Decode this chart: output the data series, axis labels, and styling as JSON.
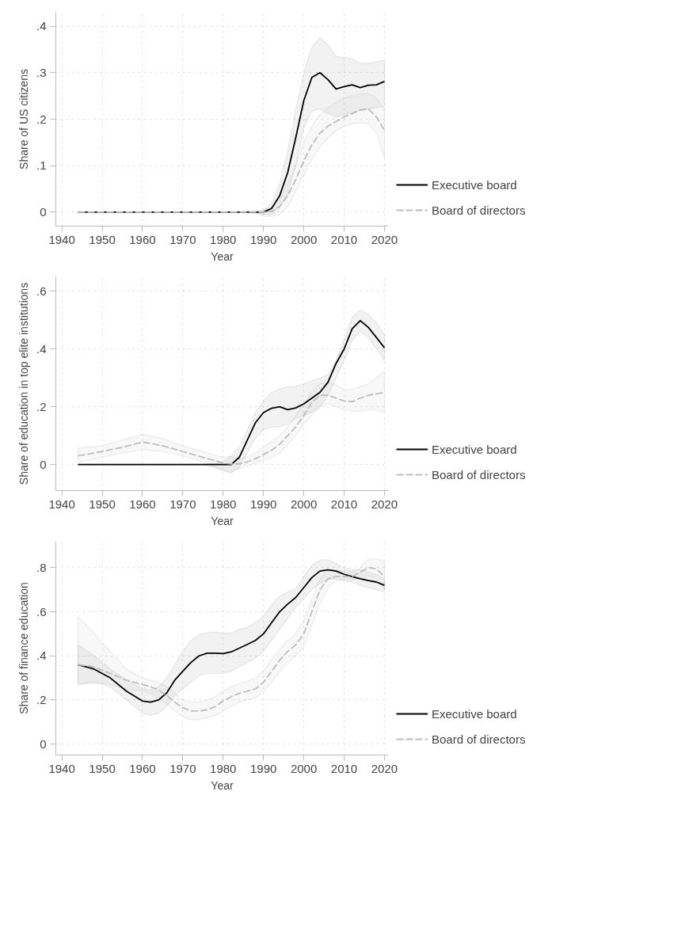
{
  "chart_data": [
    {
      "type": "line",
      "ylabel": "Share of US citizens",
      "xlabel": "Year",
      "xlim": [
        1938.5,
        2021
      ],
      "ylim": [
        -0.03,
        0.43
      ],
      "xticks": [
        1940,
        1950,
        1960,
        1970,
        1980,
        1990,
        2000,
        2010,
        2020
      ],
      "yticks": [
        {
          "value": 0,
          "label": "0"
        },
        {
          "value": 0.1,
          "label": ".1"
        },
        {
          "value": 0.2,
          "label": ".2"
        },
        {
          "value": 0.3,
          "label": ".3"
        },
        {
          "value": 0.4,
          "label": ".4"
        }
      ],
      "grid": true,
      "legend": "right",
      "line_style": "solid",
      "x": [
        1944,
        1950,
        1960,
        1970,
        1980,
        1988,
        1990,
        1992,
        1994,
        1996,
        1998,
        2000,
        2002,
        2004,
        2006,
        2008,
        2010,
        2012,
        2014,
        2016,
        2018,
        2020
      ],
      "series": [
        {
          "name": "Executive board",
          "color": "#000000",
          "values": [
            0,
            0,
            0,
            0,
            0,
            0,
            0,
            0.008,
            0.035,
            0.085,
            0.16,
            0.24,
            0.29,
            0.3,
            0.285,
            0.265,
            0.27,
            0.274,
            0.268,
            0.273,
            0.274,
            0.281
          ],
          "upper": [
            0,
            0,
            0,
            0,
            0,
            0.002,
            0.005,
            0.02,
            0.06,
            0.13,
            0.22,
            0.3,
            0.355,
            0.375,
            0.36,
            0.335,
            0.333,
            0.33,
            0.32,
            0.32,
            0.323,
            0.327
          ],
          "lower": [
            0,
            0,
            0,
            0,
            0,
            -0.002,
            -0.005,
            -0.005,
            0.01,
            0.04,
            0.1,
            0.18,
            0.218,
            0.222,
            0.212,
            0.205,
            0.21,
            0.215,
            0.218,
            0.222,
            0.225,
            0.228
          ]
        },
        {
          "name": "Board of directors",
          "color": "#bdbdbd",
          "line_style": "dashed",
          "values": [
            0,
            0,
            0,
            0,
            0,
            0,
            0,
            0.002,
            0.012,
            0.035,
            0.07,
            0.11,
            0.145,
            0.17,
            0.185,
            0.195,
            0.205,
            0.212,
            0.22,
            0.222,
            0.205,
            0.176
          ],
          "upper": [
            0,
            0,
            0,
            0,
            0,
            0.002,
            0.005,
            0.01,
            0.03,
            0.06,
            0.1,
            0.15,
            0.185,
            0.21,
            0.225,
            0.235,
            0.245,
            0.25,
            0.255,
            0.255,
            0.245,
            0.223
          ],
          "lower": [
            0,
            0,
            0,
            0,
            0,
            -0.002,
            -0.008,
            -0.01,
            -0.005,
            0.012,
            0.045,
            0.08,
            0.115,
            0.14,
            0.16,
            0.175,
            0.185,
            0.19,
            0.192,
            0.19,
            0.17,
            0.116
          ]
        }
      ]
    },
    {
      "type": "line",
      "ylabel": "Share of education in top elite institutions",
      "xlabel": "Year",
      "xlim": [
        1938.5,
        2021
      ],
      "ylim": [
        -0.09,
        0.65
      ],
      "xticks": [
        1940,
        1950,
        1960,
        1970,
        1980,
        1990,
        2000,
        2010,
        2020
      ],
      "yticks": [
        {
          "value": 0,
          "label": "0"
        },
        {
          "value": 0.2,
          "label": ".2"
        },
        {
          "value": 0.4,
          "label": ".4"
        },
        {
          "value": 0.6,
          "label": ".6"
        }
      ],
      "grid": true,
      "legend": "right",
      "line_style": "solid",
      "x": [
        1944,
        1950,
        1955,
        1960,
        1965,
        1970,
        1975,
        1980,
        1982,
        1984,
        1986,
        1988,
        1990,
        1992,
        1994,
        1996,
        1998,
        2000,
        2002,
        2004,
        2006,
        2008,
        2010,
        2012,
        2014,
        2016,
        2018,
        2020
      ],
      "series": [
        {
          "name": "Executive board",
          "color": "#000000",
          "values": [
            0,
            0,
            0,
            0,
            0,
            0,
            0,
            0,
            0,
            0.025,
            0.085,
            0.145,
            0.18,
            0.195,
            0.2,
            0.19,
            0.196,
            0.21,
            0.23,
            0.25,
            0.285,
            0.35,
            0.4,
            0.47,
            0.498,
            0.475,
            0.44,
            0.404
          ],
          "upper": [
            0,
            0,
            0,
            0,
            0,
            0,
            0,
            0.01,
            0.03,
            0.06,
            0.12,
            0.18,
            0.22,
            0.25,
            0.262,
            0.27,
            0.27,
            0.28,
            0.29,
            0.3,
            0.31,
            0.36,
            0.43,
            0.51,
            0.535,
            0.52,
            0.49,
            0.45
          ],
          "lower": [
            0,
            0,
            0,
            0,
            0,
            0,
            0,
            -0.02,
            -0.03,
            -0.01,
            0.04,
            0.09,
            0.12,
            0.13,
            0.13,
            0.14,
            0.16,
            0.17,
            0.18,
            0.2,
            0.24,
            0.3,
            0.36,
            0.43,
            0.46,
            0.44,
            0.4,
            0.36
          ]
        },
        {
          "name": "Board of directors",
          "color": "#bdbdbd",
          "line_style": "dashed",
          "values": [
            0.03,
            0.045,
            0.06,
            0.078,
            0.065,
            0.045,
            0.025,
            0.005,
            0.002,
            0.002,
            0.01,
            0.02,
            0.035,
            0.05,
            0.07,
            0.1,
            0.13,
            0.17,
            0.215,
            0.24,
            0.24,
            0.23,
            0.22,
            0.218,
            0.23,
            0.24,
            0.245,
            0.25
          ],
          "upper": [
            0.057,
            0.065,
            0.085,
            0.105,
            0.09,
            0.065,
            0.045,
            0.025,
            0.03,
            0.02,
            0.025,
            0.04,
            0.06,
            0.08,
            0.1,
            0.13,
            0.17,
            0.21,
            0.25,
            0.28,
            0.285,
            0.275,
            0.26,
            0.26,
            0.27,
            0.28,
            0.3,
            0.325
          ],
          "lower": [
            0.008,
            0.025,
            0.04,
            0.052,
            0.045,
            0.03,
            0.01,
            -0.02,
            -0.025,
            -0.015,
            -0.005,
            0.005,
            0.015,
            0.025,
            0.04,
            0.07,
            0.1,
            0.14,
            0.17,
            0.2,
            0.21,
            0.2,
            0.19,
            0.185,
            0.185,
            0.19,
            0.19,
            0.18
          ]
        }
      ]
    },
    {
      "type": "line",
      "ylabel": "Share of finance education",
      "xlabel": "Year",
      "xlim": [
        1938.5,
        2021
      ],
      "ylim": [
        -0.05,
        0.92
      ],
      "xticks": [
        1940,
        1950,
        1960,
        1970,
        1980,
        1990,
        2000,
        2010,
        2020
      ],
      "yticks": [
        {
          "value": 0,
          "label": "0"
        },
        {
          "value": 0.2,
          "label": ".2"
        },
        {
          "value": 0.4,
          "label": ".4"
        },
        {
          "value": 0.6,
          "label": ".6"
        },
        {
          "value": 0.8,
          "label": ".8"
        }
      ],
      "grid": true,
      "legend": "right",
      "line_style": "solid",
      "x": [
        1944,
        1948,
        1952,
        1956,
        1960,
        1962,
        1964,
        1966,
        1968,
        1970,
        1972,
        1974,
        1976,
        1978,
        1980,
        1982,
        1984,
        1986,
        1988,
        1990,
        1992,
        1994,
        1996,
        1998,
        2000,
        2002,
        2004,
        2006,
        2008,
        2010,
        2012,
        2014,
        2016,
        2018,
        2020
      ],
      "series": [
        {
          "name": "Executive board",
          "color": "#000000",
          "values": [
            0.36,
            0.34,
            0.3,
            0.24,
            0.195,
            0.19,
            0.2,
            0.232,
            0.29,
            0.33,
            0.37,
            0.4,
            0.412,
            0.412,
            0.41,
            0.418,
            0.435,
            0.452,
            0.47,
            0.5,
            0.55,
            0.6,
            0.635,
            0.665,
            0.71,
            0.755,
            0.785,
            0.79,
            0.785,
            0.77,
            0.76,
            0.75,
            0.742,
            0.735,
            0.72
          ],
          "upper": [
            0.45,
            0.4,
            0.34,
            0.29,
            0.25,
            0.245,
            0.26,
            0.3,
            0.36,
            0.42,
            0.47,
            0.495,
            0.505,
            0.508,
            0.502,
            0.505,
            0.52,
            0.53,
            0.55,
            0.58,
            0.63,
            0.67,
            0.69,
            0.705,
            0.76,
            0.81,
            0.835,
            0.835,
            0.82,
            0.8,
            0.79,
            0.79,
            0.78,
            0.77,
            0.75
          ],
          "lower": [
            0.27,
            0.28,
            0.26,
            0.2,
            0.14,
            0.13,
            0.14,
            0.17,
            0.22,
            0.25,
            0.28,
            0.31,
            0.32,
            0.32,
            0.32,
            0.33,
            0.35,
            0.37,
            0.39,
            0.42,
            0.47,
            0.52,
            0.57,
            0.62,
            0.66,
            0.7,
            0.73,
            0.745,
            0.75,
            0.74,
            0.735,
            0.72,
            0.71,
            0.7,
            0.69
          ]
        },
        {
          "name": "Board of directors",
          "color": "#bdbdbd",
          "line_style": "dashed",
          "values": [
            0.36,
            0.35,
            0.32,
            0.29,
            0.27,
            0.26,
            0.245,
            0.22,
            0.19,
            0.165,
            0.15,
            0.15,
            0.155,
            0.17,
            0.195,
            0.215,
            0.23,
            0.24,
            0.25,
            0.28,
            0.33,
            0.38,
            0.42,
            0.45,
            0.5,
            0.6,
            0.7,
            0.75,
            0.76,
            0.76,
            0.76,
            0.78,
            0.8,
            0.795,
            0.76
          ],
          "upper": [
            0.58,
            0.5,
            0.42,
            0.34,
            0.3,
            0.29,
            0.28,
            0.26,
            0.23,
            0.2,
            0.19,
            0.19,
            0.2,
            0.215,
            0.24,
            0.26,
            0.275,
            0.285,
            0.3,
            0.33,
            0.38,
            0.43,
            0.47,
            0.5,
            0.56,
            0.66,
            0.75,
            0.79,
            0.79,
            0.785,
            0.78,
            0.8,
            0.84,
            0.84,
            0.83
          ],
          "lower": [
            0.27,
            0.28,
            0.27,
            0.25,
            0.24,
            0.23,
            0.21,
            0.18,
            0.15,
            0.125,
            0.11,
            0.11,
            0.12,
            0.13,
            0.15,
            0.17,
            0.19,
            0.2,
            0.21,
            0.24,
            0.28,
            0.33,
            0.37,
            0.4,
            0.44,
            0.54,
            0.64,
            0.71,
            0.74,
            0.745,
            0.745,
            0.755,
            0.765,
            0.75,
            0.7
          ]
        }
      ]
    }
  ]
}
